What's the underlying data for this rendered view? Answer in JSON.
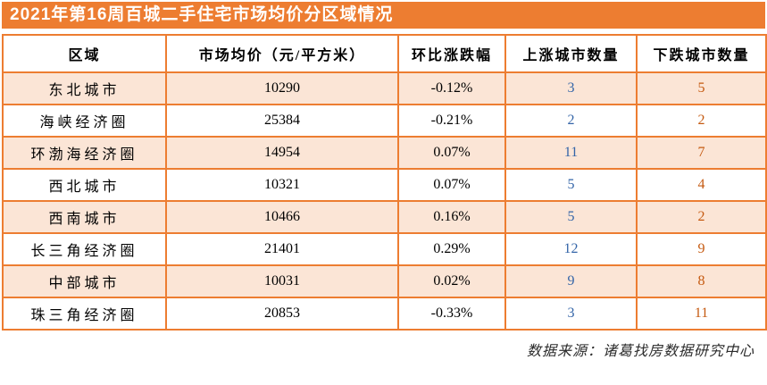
{
  "chart_data": {
    "type": "table",
    "title": "2021年第16周百城二手住宅市场均价分区域情况",
    "columns": [
      "区域",
      "市场均价（元/平方米）",
      "环比涨跌幅",
      "上涨城市数量",
      "下跌城市数量"
    ],
    "rows": [
      {
        "region": "东北城市",
        "price": "10290",
        "change": "-0.12%",
        "up": "3",
        "down": "5"
      },
      {
        "region": "海峡经济圈",
        "price": "25384",
        "change": "-0.21%",
        "up": "2",
        "down": "2"
      },
      {
        "region": "环渤海经济圈",
        "price": "14954",
        "change": "0.07%",
        "up": "11",
        "down": "7"
      },
      {
        "region": "西北城市",
        "price": "10321",
        "change": "0.07%",
        "up": "5",
        "down": "4"
      },
      {
        "region": "西南城市",
        "price": "10466",
        "change": "0.16%",
        "up": "5",
        "down": "2"
      },
      {
        "region": "长三角经济圈",
        "price": "21401",
        "change": "0.29%",
        "up": "12",
        "down": "9"
      },
      {
        "region": "中部城市",
        "price": "10031",
        "change": "0.02%",
        "up": "9",
        "down": "8"
      },
      {
        "region": "珠三角经济圈",
        "price": "20853",
        "change": "-0.33%",
        "up": "3",
        "down": "11"
      }
    ],
    "source_note": "数据来源：诸葛找房数据研究中心",
    "layout": "striped-table",
    "grid": true
  },
  "colors": {
    "accent": "#ED7D31",
    "peach": "#FBE5D6",
    "up": "#3465A8",
    "down": "#C55A11"
  }
}
